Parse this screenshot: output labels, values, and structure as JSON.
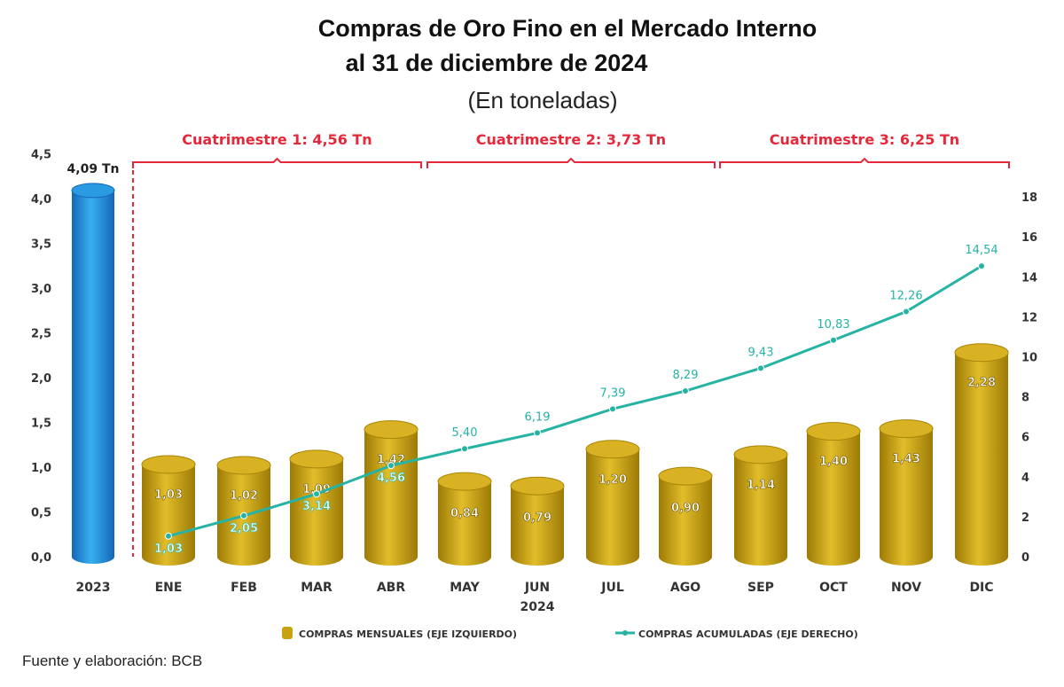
{
  "chart_data": {
    "type": "bar",
    "title": "Compras de Oro Fino en el Mercado Interno",
    "title_line2": "al 31 de diciembre de 2024",
    "subtitle": "(En toneladas)",
    "categories": [
      "2023",
      "ENE",
      "FEB",
      "MAR",
      "ABR",
      "MAY",
      "JUN",
      "JUL",
      "AGO",
      "SEP",
      "OCT",
      "NOV",
      "DIC"
    ],
    "year_label": "2024",
    "series": [
      {
        "name": "COMPRAS MENSUALES (EJE IZQUIERDO)",
        "type": "bar",
        "axis": "left",
        "values": [
          4.09,
          1.03,
          1.02,
          1.09,
          1.42,
          0.84,
          0.79,
          1.2,
          0.9,
          1.14,
          1.4,
          1.43,
          2.28
        ],
        "labels": [
          "4,09 Tn",
          "1,03",
          "1,02",
          "1,09",
          "1,42",
          "0,84",
          "0,79",
          "1,20",
          "0,90",
          "1,14",
          "1,40",
          "1,43",
          "2,28"
        ]
      },
      {
        "name": "COMPRAS ACUMULADAS (EJE DERECHO)",
        "type": "line",
        "axis": "right",
        "values": [
          null,
          1.03,
          2.05,
          3.14,
          4.56,
          5.4,
          6.19,
          7.39,
          8.29,
          9.43,
          10.83,
          12.26,
          14.54
        ],
        "labels": [
          "",
          "1,03",
          "2,05",
          "3,14",
          "4,56",
          "5,40",
          "6,19",
          "7,39",
          "8,29",
          "9,43",
          "10,83",
          "12,26",
          "14,54"
        ]
      }
    ],
    "left_axis": {
      "ylim": [
        0,
        4.5
      ],
      "ticks": [
        "0,0",
        "0,5",
        "1,0",
        "1,5",
        "2,0",
        "2,5",
        "3,0",
        "3,5",
        "4,0",
        "4,5"
      ]
    },
    "right_axis": {
      "ylim": [
        0,
        18
      ],
      "ticks": [
        "0",
        "2",
        "4",
        "6",
        "8",
        "10",
        "12",
        "14",
        "16",
        "18"
      ]
    },
    "annotations": [
      {
        "text": "Cuatrimestre 1: 4,56 Tn",
        "from": "ENE",
        "to": "ABR"
      },
      {
        "text": "Cuatrimestre 2: 3,73 Tn",
        "from": "MAY",
        "to": "AGO"
      },
      {
        "text": "Cuatrimestre 3: 6,25 Tn",
        "from": "SEP",
        "to": "DIC"
      }
    ],
    "legend_placement": "bottom",
    "grid": false,
    "colors": {
      "bar_2023": "#1e8fd8",
      "bar_month": "#c9a212",
      "line": "#26b3a3",
      "annotation": "#e5283a"
    }
  },
  "footer": "Fuente y elaboración: BCB"
}
